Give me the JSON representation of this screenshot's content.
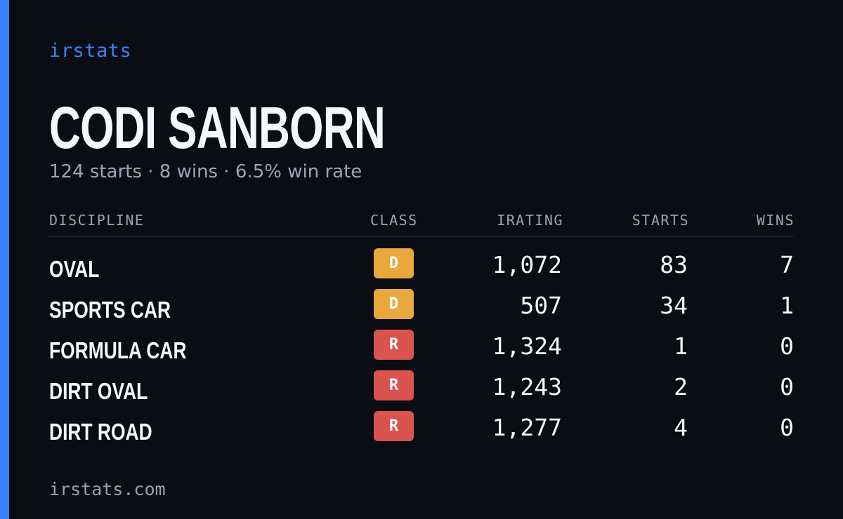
{
  "brand": "irstats",
  "driver": {
    "name": "CODI SANBORN",
    "summary": "124 starts · 8 wins · 6.5% win rate"
  },
  "table": {
    "columns": [
      "DISCIPLINE",
      "CLASS",
      "IRATING",
      "STARTS",
      "WINS"
    ],
    "rows": [
      {
        "discipline": "OVAL",
        "class": "D",
        "irating": "1,072",
        "starts": "83",
        "wins": "7"
      },
      {
        "discipline": "SPORTS CAR",
        "class": "D",
        "irating": "507",
        "starts": "34",
        "wins": "1"
      },
      {
        "discipline": "FORMULA CAR",
        "class": "R",
        "irating": "1,324",
        "starts": "1",
        "wins": "0"
      },
      {
        "discipline": "DIRT OVAL",
        "class": "R",
        "irating": "1,243",
        "starts": "2",
        "wins": "0"
      },
      {
        "discipline": "DIRT ROAD",
        "class": "R",
        "irating": "1,277",
        "starts": "4",
        "wins": "0"
      }
    ]
  },
  "class_colors": {
    "D": "#e8a83e",
    "R": "#d9534f"
  },
  "accent_color": "#3b82f6",
  "footer": "irstats.com"
}
